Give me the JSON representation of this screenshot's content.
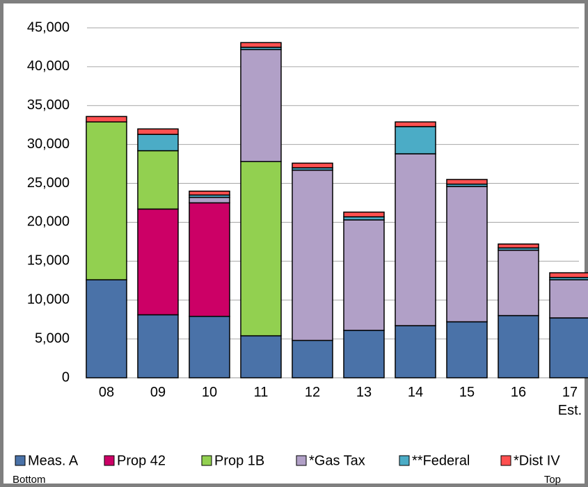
{
  "chart_data": {
    "type": "stacked_bar",
    "categories": [
      "08",
      "09",
      "10",
      "11",
      "12",
      "13",
      "14",
      "15",
      "16",
      "17\nEst."
    ],
    "series": [
      {
        "name": "Meas. A",
        "color": "#4a72a8",
        "values": [
          12600,
          8100,
          7900,
          5400,
          4800,
          6100,
          6700,
          7200,
          8000,
          7700
        ]
      },
      {
        "name": "Prop 42",
        "color": "#cc0066",
        "values": [
          0,
          13600,
          14600,
          0,
          0,
          0,
          0,
          0,
          0,
          0
        ]
      },
      {
        "name": "Prop 1B",
        "color": "#92d050",
        "values": [
          20300,
          7500,
          0,
          22400,
          0,
          0,
          0,
          0,
          0,
          0
        ]
      },
      {
        "name": "*Gas Tax",
        "color": "#b1a0c7",
        "values": [
          0,
          0,
          700,
          14400,
          21900,
          14200,
          22100,
          17400,
          8400,
          4900
        ]
      },
      {
        "name": "**Federal",
        "color": "#4bacc6",
        "values": [
          0,
          2100,
          300,
          300,
          300,
          400,
          3500,
          300,
          300,
          300
        ]
      },
      {
        "name": "*Dist IV",
        "color": "#ff5050",
        "values": [
          700,
          700,
          500,
          600,
          600,
          600,
          600,
          600,
          500,
          600
        ]
      }
    ],
    "ylim": [
      0,
      45000
    ],
    "yticks": [
      0,
      {
        "value": 5000,
        "label": "5,000"
      },
      {
        "value": 10000,
        "label": "10,000"
      },
      {
        "value": 15000,
        "label": "15,000"
      },
      {
        "value": 20000,
        "label": "20,000"
      },
      {
        "value": 25000,
        "label": "25,000"
      },
      {
        "value": 30000,
        "label": "30,000"
      },
      {
        "value": 35000,
        "label": "35,000"
      },
      {
        "value": 40000,
        "label": "40,000"
      },
      {
        "value": 45000,
        "label": "45,000"
      }
    ],
    "grid": true,
    "legend_position": "bottom",
    "legend_notes": [
      "Bottom",
      "Top"
    ]
  }
}
